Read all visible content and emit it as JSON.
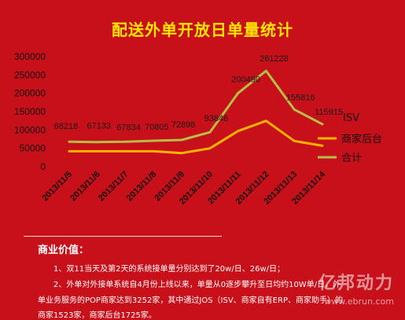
{
  "chart_data": {
    "type": "line",
    "title": "配送外单开放日单量统计",
    "categories": [
      "2013/11/5",
      "2013/11/6",
      "2013/11/7",
      "2013/11/8",
      "2013/11/9",
      "2013/11/10",
      "2013/11/11",
      "2013/11/12",
      "2013/11/13",
      "2013/11/14"
    ],
    "y_ticks": [
      "300000",
      "250000",
      "200000",
      "150000",
      "100000",
      "50000",
      "0"
    ],
    "ylim": [
      0,
      300000
    ],
    "grid": false,
    "legend_title": "ISV",
    "legend_position": "right",
    "series": [
      {
        "name": "商家后台",
        "color": "#ffb300",
        "values": [
          42000,
          42000,
          42000,
          42000,
          37000,
          50000,
          97000,
          125000,
          70000,
          57000
        ]
      },
      {
        "name": "合计",
        "color": "#b7be48",
        "values": [
          68218,
          67133,
          67834,
          70805,
          72898,
          93846,
          200490,
          261228,
          155816,
          115915
        ],
        "data_labels": [
          "68218",
          "67133",
          "67834",
          "70805",
          "72898",
          "93846",
          "200490",
          "261228",
          "155816",
          "115915"
        ]
      }
    ]
  },
  "notes": {
    "heading": "商业价值：",
    "lines": [
      "1、双11当天及第2天的系统接单量分别达到了20w/日、26w/日；",
      "2、外单对外接单系统自4月份上线以来，单量从0逐步攀升至日均约10W单/日，外",
      "单业务服务的POP商家达到3252家，其中通过JOS（ISV、商家自有ERP、商家助手）的",
      "商家1523家，商家后台1725家。"
    ]
  },
  "watermark": {
    "brand": "亿邦动力",
    "url": "www.ebrun.com"
  }
}
